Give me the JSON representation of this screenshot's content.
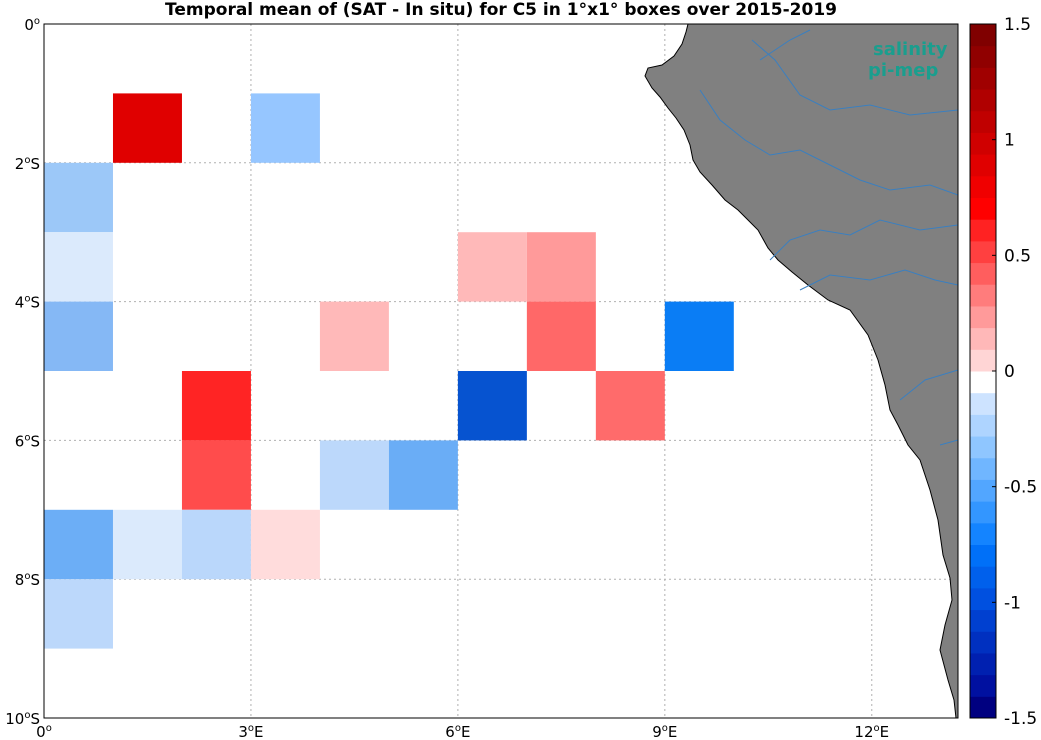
{
  "title": "Temporal mean of (SAT - In situ) for C5 in 1°x1° boxes over 2015-2019",
  "logo": {
    "line1": "salinity",
    "line2": "pi-mep",
    "color": "#1a9e8e"
  },
  "colors": {
    "land": "#808080",
    "coast": "#000000",
    "river": "#3a7fc0",
    "grid": "#b0b0b0"
  },
  "axes": {
    "x_ticks": [
      {
        "value": 0,
        "label": "0"
      },
      {
        "value": 3,
        "label": "3"
      },
      {
        "value": 6,
        "label": "6"
      },
      {
        "value": 9,
        "label": "9"
      },
      {
        "value": 12,
        "label": "12"
      }
    ],
    "x_suffix": "E",
    "y_ticks": [
      {
        "value": 0,
        "label": "0"
      },
      {
        "value": -2,
        "label": "2"
      },
      {
        "value": -4,
        "label": "4"
      },
      {
        "value": -6,
        "label": "6"
      },
      {
        "value": -8,
        "label": "8"
      },
      {
        "value": -10,
        "label": "10"
      }
    ],
    "y_suffix": "S",
    "x_range": [
      0,
      13.25
    ],
    "y_range": [
      -10,
      0
    ]
  },
  "colorbar": {
    "range": [
      -1.5,
      1.5
    ],
    "tick_labels": [
      {
        "value": 1.5,
        "label": "1.5"
      },
      {
        "value": 1,
        "label": "1"
      },
      {
        "value": 0.5,
        "label": "0.5"
      },
      {
        "value": 0,
        "label": "0"
      },
      {
        "value": -0.5,
        "label": "-0.5"
      },
      {
        "value": -1,
        "label": "-1"
      },
      {
        "value": -1.5,
        "label": "-1.5"
      }
    ],
    "colors": [
      "#000080",
      "#0010a0",
      "#0020b0",
      "#0030c0",
      "#0040d0",
      "#0050e0",
      "#0060ec",
      "#0070f8",
      "#1484ff",
      "#3396ff",
      "#52a6ff",
      "#70b6ff",
      "#8fc6ff",
      "#aed4ff",
      "#cde3ff",
      "#ffffff",
      "#ffd5d5",
      "#ffb8b8",
      "#ff9a9a",
      "#ff7c7c",
      "#ff5e5e",
      "#ff4040",
      "#ff2222",
      "#ff0000",
      "#f00000",
      "#e00000",
      "#d00000",
      "#c00000",
      "#b00000",
      "#a00000",
      "#900000",
      "#800000"
    ]
  },
  "chart_data": {
    "type": "heatmap",
    "cell_size_deg": 1,
    "cells": [
      {
        "lon": 1,
        "lat": -1,
        "value": 1.0,
        "color": "#e00000"
      },
      {
        "lon": 3,
        "lat": -1,
        "value": -0.35,
        "color": "#96c6ff"
      },
      {
        "lon": 0,
        "lat": -2,
        "value": -0.35,
        "color": "#9cc8f8"
      },
      {
        "lon": 0,
        "lat": -3,
        "value": -0.1,
        "color": "#dbeafc"
      },
      {
        "lon": 6,
        "lat": -3,
        "value": 0.2,
        "color": "#ffb9b9"
      },
      {
        "lon": 7,
        "lat": -3,
        "value": 0.35,
        "color": "#ff9a9a"
      },
      {
        "lon": 0,
        "lat": -4,
        "value": -0.45,
        "color": "#85b8f5"
      },
      {
        "lon": 4,
        "lat": -4,
        "value": 0.2,
        "color": "#ffb9b9"
      },
      {
        "lon": 7,
        "lat": -4,
        "value": 0.5,
        "color": "#ff6868"
      },
      {
        "lon": 9,
        "lat": -4,
        "value": -0.85,
        "color": "#0a7df5"
      },
      {
        "lon": 2,
        "lat": -5,
        "value": 0.75,
        "color": "#ff2424"
      },
      {
        "lon": 6,
        "lat": -5,
        "value": -1.05,
        "color": "#0653d0"
      },
      {
        "lon": 8,
        "lat": -5,
        "value": 0.5,
        "color": "#ff6b6b"
      },
      {
        "lon": 2,
        "lat": -6,
        "value": 0.6,
        "color": "#ff4c4c"
      },
      {
        "lon": 4,
        "lat": -6,
        "value": -0.2,
        "color": "#bcd8fb"
      },
      {
        "lon": 5,
        "lat": -6,
        "value": -0.5,
        "color": "#6aadf6"
      },
      {
        "lon": 0,
        "lat": -7,
        "value": -0.5,
        "color": "#6caef6"
      },
      {
        "lon": 1,
        "lat": -7,
        "value": -0.1,
        "color": "#dbeafc"
      },
      {
        "lon": 2,
        "lat": -7,
        "value": -0.25,
        "color": "#bad7fb"
      },
      {
        "lon": 3,
        "lat": -7,
        "value": 0.1,
        "color": "#ffdcdc"
      },
      {
        "lon": 0,
        "lat": -8,
        "value": -0.25,
        "color": "#bcd8fb"
      }
    ]
  }
}
